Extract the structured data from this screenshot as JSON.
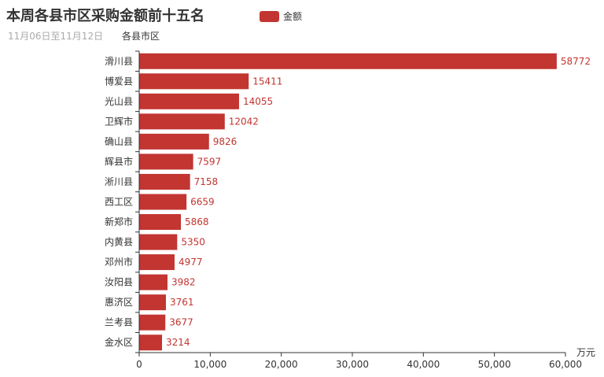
{
  "chart_data": {
    "type": "bar",
    "orientation": "horizontal",
    "title": "本周各县市区采购金额前十五名",
    "subtitle": "11月06日至11月12日",
    "ylabel": "各县市区",
    "xlabel": "万元",
    "legend": {
      "labels": [
        "金额"
      ],
      "placement": "top-center"
    },
    "categories": [
      "滑川县",
      "博爱县",
      "光山县",
      "卫辉市",
      "确山县",
      "辉县市",
      "淅川县",
      "西工区",
      "新郑市",
      "内黄县",
      "邓州市",
      "汝阳县",
      "惠济区",
      "兰考县",
      "金水区"
    ],
    "series": [
      {
        "name": "金额",
        "color": "#c23531",
        "values": [
          58772,
          15411,
          14055,
          12042,
          9826,
          7597,
          7158,
          6659,
          5868,
          5350,
          4977,
          3982,
          3761,
          3677,
          3214
        ]
      }
    ],
    "xlim": [
      0,
      60000
    ],
    "xticks": [
      "0",
      "10,000",
      "20,000",
      "30,000",
      "40,000",
      "50,000",
      "60,000"
    ],
    "grid": false
  }
}
